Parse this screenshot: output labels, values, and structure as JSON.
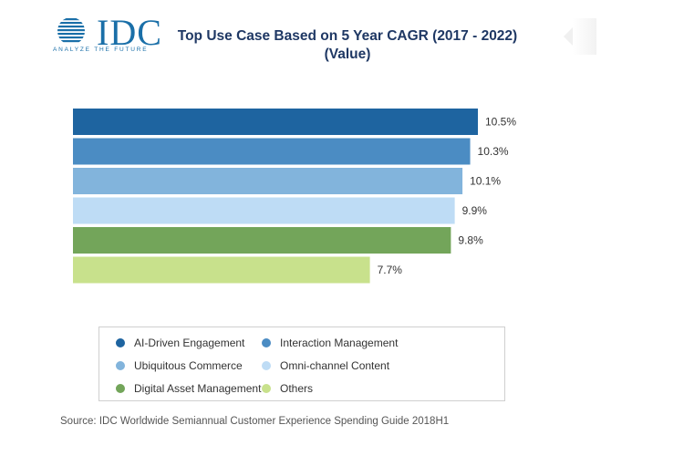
{
  "logo": {
    "text": "IDC",
    "tagline": "ANALYZE THE FUTURE",
    "color": "#1a6fa8"
  },
  "chart_data": {
    "type": "bar",
    "orientation": "horizontal",
    "title": "Top Use Case Based on 5 Year CAGR (2017 - 2022) (Value)",
    "categories": [
      "AI-Driven Engagement",
      "Interaction Management",
      "Ubiquitous Commerce",
      "Omni-channel Content",
      "Digital Asset Management",
      "Others"
    ],
    "values": [
      10.5,
      10.3,
      10.1,
      9.9,
      9.8,
      7.7
    ],
    "labels": [
      "10.5%",
      "10.3%",
      "10.1%",
      "9.9%",
      "9.8%",
      "7.7%"
    ],
    "colors": [
      "#1e64a0",
      "#4b8cc3",
      "#82b4dc",
      "#bedcf5",
      "#73a55a",
      "#c8e18c"
    ],
    "legend_position": "bottom",
    "grid": false,
    "xlim": [
      0,
      10.5
    ]
  },
  "source": "Source: IDC Worldwide Semiannual Customer Experience Spending Guide 2018H1"
}
